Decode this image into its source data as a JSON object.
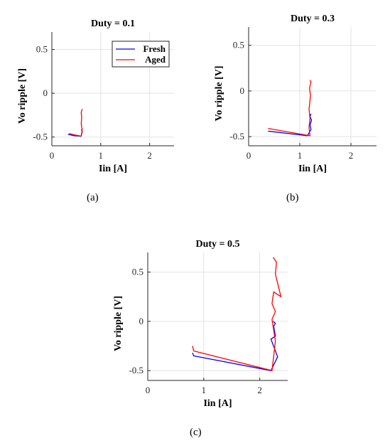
{
  "chart_data": [
    {
      "type": "line",
      "title": "Duty = 0.1",
      "xlabel": "Iin [A]",
      "ylabel": "Vo ripple [V]",
      "xlim": [
        0,
        2.5
      ],
      "ylim": [
        -0.6,
        0.7
      ],
      "xticks": [
        0,
        1,
        2
      ],
      "yticks": [
        0.5,
        0,
        -0.5
      ],
      "xtick_labels": [
        "0",
        "1",
        "2"
      ],
      "ytick_labels": [
        "0.5",
        "0",
        "-0.5"
      ],
      "grid": true,
      "legend": "top-right",
      "caption": "(a)",
      "series": [
        {
          "name": "Fresh",
          "color": "#0000ff",
          "x": [
            0.33,
            0.45,
            0.6,
            0.62,
            0.61,
            0.62
          ],
          "y": [
            -0.47,
            -0.485,
            -0.49,
            -0.44,
            -0.42,
            -0.4
          ]
        },
        {
          "name": "Aged",
          "color": "#ff0000",
          "x": [
            0.35,
            0.5,
            0.6,
            0.62,
            0.6,
            0.61,
            0.6,
            0.62
          ],
          "y": [
            -0.46,
            -0.48,
            -0.49,
            -0.42,
            -0.35,
            -0.28,
            -0.22,
            -0.18
          ]
        }
      ]
    },
    {
      "type": "line",
      "title": "Duty = 0.3",
      "xlabel": "Iin [A]",
      "ylabel": "Vo ripple [V]",
      "xlim": [
        0,
        2.5
      ],
      "ylim": [
        -0.6,
        0.7
      ],
      "xticks": [
        0,
        1,
        2
      ],
      "yticks": [
        0.5,
        0,
        -0.5
      ],
      "xtick_labels": [
        "0",
        "1",
        "2"
      ],
      "ytick_labels": [
        "0.5",
        "0",
        "-0.5"
      ],
      "grid": true,
      "caption": "(b)",
      "series": [
        {
          "name": "Fresh",
          "color": "#0000ff",
          "x": [
            0.38,
            1.15,
            1.22,
            1.2,
            1.23,
            1.2,
            1.22
          ],
          "y": [
            -0.44,
            -0.49,
            -0.42,
            -0.37,
            -0.32,
            -0.28,
            -0.25
          ]
        },
        {
          "name": "Aged",
          "color": "#ff0000",
          "x": [
            0.38,
            1.2,
            1.18,
            1.2,
            1.18,
            1.21,
            1.19,
            1.22,
            1.2
          ],
          "y": [
            -0.41,
            -0.49,
            -0.4,
            -0.3,
            -0.2,
            -0.05,
            0.03,
            0.1,
            0.12
          ]
        }
      ]
    },
    {
      "type": "line",
      "title": "Duty = 0.5",
      "xlabel": "Iin [A]",
      "ylabel": "Vo ripple [V]",
      "xlim": [
        0,
        2.5
      ],
      "ylim": [
        -0.6,
        0.7
      ],
      "xticks": [
        0,
        1,
        2
      ],
      "yticks": [
        0.5,
        0,
        -0.5
      ],
      "xtick_labels": [
        "0",
        "1",
        "2"
      ],
      "ytick_labels": [
        "0.5",
        "0",
        "-0.5"
      ],
      "grid": true,
      "caption": "(c)",
      "series": [
        {
          "name": "Fresh",
          "color": "#0000ff",
          "x": [
            0.8,
            0.82,
            2.2,
            2.32,
            2.2,
            2.28,
            2.25,
            2.28,
            2.24
          ],
          "y": [
            -0.32,
            -0.35,
            -0.5,
            -0.36,
            -0.18,
            -0.15,
            -0.05,
            -0.02,
            0.0
          ]
        },
        {
          "name": "Aged",
          "color": "#ff0000",
          "x": [
            0.8,
            0.82,
            2.22,
            2.28,
            2.22,
            2.28,
            2.22,
            2.25,
            2.38,
            2.28,
            2.3,
            2.24
          ],
          "y": [
            -0.25,
            -0.3,
            -0.5,
            -0.2,
            0.02,
            0.1,
            0.18,
            0.3,
            0.25,
            0.48,
            0.6,
            0.65
          ]
        }
      ]
    }
  ]
}
